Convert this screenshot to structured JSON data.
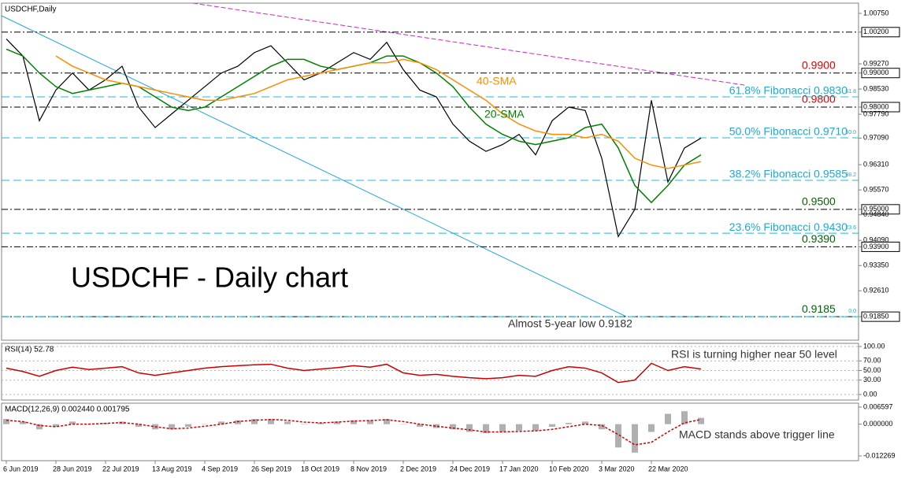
{
  "chart_data": [
    {
      "type": "line",
      "title": "USDCHF,Daily",
      "annotations": [
        "USDCHF - Daily chart",
        "Almost 5-year low 0.9182",
        "40-SMA",
        "20-SMA"
      ],
      "ylim": [
        0.9116,
        1.0105
      ],
      "yticks": [
        {
          "value": 1.0075,
          "label": "1.00750"
        },
        {
          "value": 1.002,
          "label": "1.00200"
        },
        {
          "value": 0.9927,
          "label": "0.99270"
        },
        {
          "value": 0.99,
          "label": "0.99000"
        },
        {
          "value": 0.9853,
          "label": "0.98530"
        },
        {
          "value": 0.98,
          "label": "0.98000"
        },
        {
          "value": 0.9779,
          "label": "0.97790"
        },
        {
          "value": 0.9709,
          "label": "0.97090"
        },
        {
          "value": 0.9631,
          "label": "0.96310"
        },
        {
          "value": 0.9557,
          "label": "0.95570"
        },
        {
          "value": 0.95,
          "label": "0.95000"
        },
        {
          "value": 0.9484,
          "label": "0.94840"
        },
        {
          "value": 0.9409,
          "label": "0.94090"
        },
        {
          "value": 0.939,
          "label": "0.93900"
        },
        {
          "value": 0.9335,
          "label": "0.93350"
        },
        {
          "value": 0.9261,
          "label": "0.92610"
        },
        {
          "value": 0.9185,
          "label": "0.91850"
        }
      ],
      "levels": [
        {
          "value": 1.002
        },
        {
          "value": 0.99,
          "label": "0.9900",
          "color": "#e00000"
        },
        {
          "value": 0.98,
          "label": "0.9800",
          "color": "#e00000"
        },
        {
          "value": 0.95,
          "label": "0.9500",
          "color": "#006400"
        },
        {
          "value": 0.939,
          "label": "0.9390",
          "color": "#006400"
        },
        {
          "value": 0.9185,
          "label": "0.9185",
          "color": "#006400"
        }
      ],
      "fibs": [
        {
          "value": 0.983,
          "label": "61.8% Fibonacci 0.9830",
          "tag": "61.8"
        },
        {
          "value": 0.971,
          "label": "50.0% Fibonacci 0.9710",
          "tag": "50.0"
        },
        {
          "value": 0.9585,
          "label": "38.2% Fibonacci 0.9585",
          "tag": "38.2"
        },
        {
          "value": 0.943,
          "label": "23.6% Fibonacci 0.9430",
          "tag": "23.6"
        },
        {
          "value": 0.9185,
          "tag": "0.0"
        }
      ],
      "series": [
        {
          "color": "#000000",
          "values": [
            1.0,
            0.995,
            0.976,
            0.985,
            0.99,
            0.985,
            0.988,
            0.992,
            0.98,
            0.974,
            0.978,
            0.982,
            0.986,
            0.99,
            0.992,
            0.996,
            0.998,
            0.993,
            0.988,
            0.99,
            0.993,
            0.996,
            0.994,
            0.999,
            0.991,
            0.985,
            0.983,
            0.975,
            0.97,
            0.967,
            0.969,
            0.972,
            0.966,
            0.976,
            0.98,
            0.979,
            0.965,
            0.942,
            0.95,
            0.982,
            0.958,
            0.968,
            0.9709
          ]
        },
        {
          "color": "#008000",
          "values": [
            0.997,
            0.995,
            0.99,
            0.986,
            0.984,
            0.985,
            0.986,
            0.987,
            0.986,
            0.983,
            0.98,
            0.979,
            0.98,
            0.983,
            0.986,
            0.989,
            0.992,
            0.994,
            0.994,
            0.992,
            0.991,
            0.992,
            0.993,
            0.995,
            0.995,
            0.993,
            0.99,
            0.986,
            0.98,
            0.975,
            0.972,
            0.97,
            0.969,
            0.97,
            0.971,
            0.974,
            0.975,
            0.968,
            0.957,
            0.952,
            0.957,
            0.963,
            0.966
          ]
        },
        {
          "color": "#ff8c00",
          "values": [
            null,
            null,
            null,
            0.995,
            0.992,
            0.99,
            0.988,
            0.987,
            0.986,
            0.985,
            0.984,
            0.983,
            0.982,
            0.982,
            0.983,
            0.984,
            0.986,
            0.988,
            0.989,
            0.99,
            0.991,
            0.992,
            0.993,
            0.993,
            0.994,
            0.993,
            0.991,
            0.988,
            0.985,
            0.982,
            0.978,
            0.975,
            0.973,
            0.972,
            0.972,
            0.971,
            0.972,
            0.97,
            0.965,
            0.963,
            0.962,
            0.963,
            0.964
          ]
        }
      ]
    },
    {
      "type": "line",
      "title": "RSI(14) 52.78",
      "annotations": [
        "RSI is turning higher near 50 level"
      ],
      "ylim": [
        -11.5,
        106.6
      ],
      "grid": true,
      "yticks": [
        {
          "value": 100,
          "label": "100.00"
        },
        {
          "value": 70,
          "label": "70.00"
        },
        {
          "value": 50,
          "label": "50.00"
        },
        {
          "value": 30,
          "label": "30.00"
        },
        {
          "value": 0,
          "label": "0.00"
        }
      ],
      "series": [
        {
          "color": "#cc0000",
          "values": [
            55,
            48,
            38,
            50,
            57,
            52,
            55,
            58,
            45,
            40,
            45,
            50,
            55,
            58,
            60,
            62,
            63,
            55,
            50,
            53,
            56,
            60,
            57,
            63,
            45,
            40,
            42,
            38,
            35,
            33,
            35,
            40,
            38,
            50,
            58,
            55,
            45,
            25,
            30,
            65,
            50,
            58,
            53
          ]
        }
      ]
    },
    {
      "type": "bar",
      "title": "MACD(12,26,9) 0.002440 0.001795",
      "annotations": [
        "MACD stands above trigger line"
      ],
      "ylim": [
        -0.0141,
        0.0081
      ],
      "yticks": [
        0.006597,
        {
          "value": 0,
          "label": "0.000000"
        },
        -0.012269
      ],
      "categories": [
        "6 Jun 2019",
        null,
        null,
        "28 Jun 2019",
        null,
        null,
        "22 Jul 2019",
        null,
        null,
        "13 Aug 2019",
        null,
        null,
        "4 Sep 2019",
        null,
        null,
        "26 Sep 2019",
        null,
        null,
        "18 Oct 2019",
        null,
        null,
        "8 Nov 2019",
        null,
        null,
        "2 Dec 2019",
        null,
        null,
        "24 Dec 2019",
        null,
        null,
        "17 Jan 2020",
        null,
        null,
        "10 Feb 2020",
        null,
        null,
        "3 Mar 2020",
        null,
        null,
        "22 Mar 2020",
        null,
        null,
        null
      ],
      "series": [
        {
          "color": "#b0b0b0",
          "values": [
            0.002,
            0.001,
            -0.002,
            -0.001,
            0.001,
            0,
            0.0005,
            0.001,
            -0.001,
            -0.002,
            -0.002,
            -0.001,
            0,
            0.001,
            0.0015,
            0.002,
            0.002,
            0.001,
            0,
            0.0005,
            0.001,
            0.0015,
            0.0015,
            0.002,
            0,
            -0.001,
            -0.0015,
            -0.002,
            -0.003,
            -0.0035,
            -0.003,
            -0.0025,
            -0.0025,
            -0.001,
            0.0005,
            0.001,
            -0.002,
            -0.009,
            -0.011,
            -0.003,
            0.004,
            0.005,
            0.00244
          ]
        },
        {
          "type": "line",
          "color": "#cc0000",
          "values": [
            0.0015,
            0.001,
            -0.0005,
            -0.001,
            0,
            0,
            0.0003,
            0.0006,
            0,
            -0.001,
            -0.0018,
            -0.0015,
            -0.0008,
            0,
            0.001,
            0.0015,
            0.0018,
            0.0015,
            0.0008,
            0.0005,
            0.0008,
            0.0012,
            0.0014,
            0.0017,
            0.001,
            0,
            -0.0008,
            -0.0015,
            -0.0022,
            -0.003,
            -0.003,
            -0.0028,
            -0.0026,
            -0.002,
            -0.001,
            0,
            -0.0005,
            -0.004,
            -0.008,
            -0.007,
            -0.003,
            0.0005,
            0.001795
          ]
        }
      ]
    }
  ]
}
